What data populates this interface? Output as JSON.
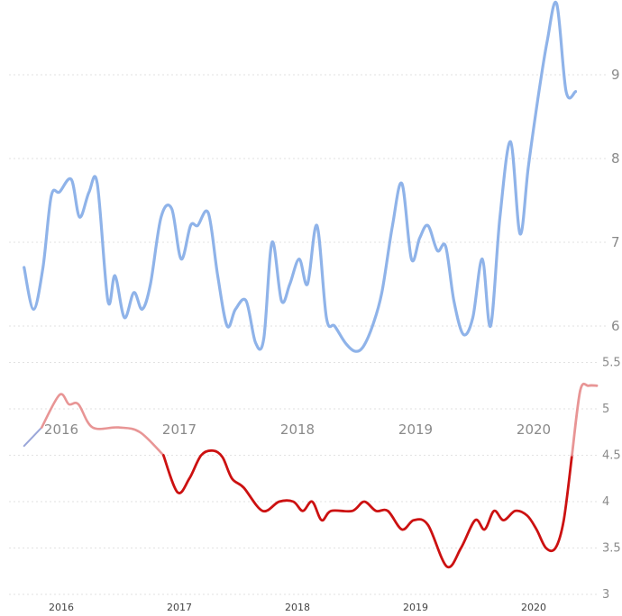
{
  "chart_data": [
    {
      "type": "line",
      "title": "",
      "xlabel": "",
      "ylabel": "",
      "ylim": [
        5.6,
        9.9
      ],
      "yticks": [
        "6",
        "7",
        "8",
        "9"
      ],
      "xticks": [
        "2016",
        "2017",
        "2018",
        "2019",
        "2020"
      ],
      "grid": true,
      "series": [
        {
          "color": "#8fb3e9",
          "points": [
            [
              2015.7,
              6.7
            ],
            [
              2015.78,
              6.2
            ],
            [
              2015.86,
              6.7
            ],
            [
              2015.93,
              7.55
            ],
            [
              2016.0,
              7.6
            ],
            [
              2016.1,
              7.75
            ],
            [
              2016.17,
              7.3
            ],
            [
              2016.25,
              7.6
            ],
            [
              2016.32,
              7.7
            ],
            [
              2016.41,
              6.3
            ],
            [
              2016.47,
              6.6
            ],
            [
              2016.55,
              6.1
            ],
            [
              2016.63,
              6.4
            ],
            [
              2016.7,
              6.2
            ],
            [
              2016.77,
              6.5
            ],
            [
              2016.86,
              7.3
            ],
            [
              2016.95,
              7.4
            ],
            [
              2017.03,
              6.8
            ],
            [
              2017.11,
              7.2
            ],
            [
              2017.17,
              7.2
            ],
            [
              2017.26,
              7.35
            ],
            [
              2017.34,
              6.6
            ],
            [
              2017.42,
              6.0
            ],
            [
              2017.49,
              6.2
            ],
            [
              2017.58,
              6.3
            ],
            [
              2017.66,
              5.8
            ],
            [
              2017.73,
              5.85
            ],
            [
              2017.8,
              7.0
            ],
            [
              2017.88,
              6.3
            ],
            [
              2017.95,
              6.5
            ],
            [
              2018.03,
              6.8
            ],
            [
              2018.1,
              6.5
            ],
            [
              2018.18,
              7.2
            ],
            [
              2018.26,
              6.1
            ],
            [
              2018.33,
              6.0
            ],
            [
              2018.42,
              5.8
            ],
            [
              2018.5,
              5.7
            ],
            [
              2018.57,
              5.75
            ],
            [
              2018.65,
              6.0
            ],
            [
              2018.73,
              6.4
            ],
            [
              2018.82,
              7.2
            ],
            [
              2018.9,
              7.7
            ],
            [
              2018.98,
              6.8
            ],
            [
              2019.05,
              7.05
            ],
            [
              2019.12,
              7.2
            ],
            [
              2019.2,
              6.9
            ],
            [
              2019.27,
              6.95
            ],
            [
              2019.34,
              6.3
            ],
            [
              2019.42,
              5.9
            ],
            [
              2019.5,
              6.1
            ],
            [
              2019.58,
              6.8
            ],
            [
              2019.65,
              6.0
            ],
            [
              2019.73,
              7.3
            ],
            [
              2019.82,
              8.2
            ],
            [
              2019.9,
              7.1
            ],
            [
              2019.97,
              7.9
            ],
            [
              2020.05,
              8.7
            ],
            [
              2020.13,
              9.4
            ],
            [
              2020.21,
              9.85
            ],
            [
              2020.29,
              8.8
            ],
            [
              2020.37,
              8.8
            ]
          ]
        }
      ]
    },
    {
      "type": "line",
      "title": "",
      "xlabel": "",
      "ylabel": "",
      "ylim": [
        3.0,
        5.5
      ],
      "yticks": [
        "3",
        "3.5",
        "4",
        "4.5",
        "5",
        "5.5"
      ],
      "xticks": [
        "2016",
        "2017",
        "2018",
        "2019",
        "2020"
      ],
      "grid": true,
      "series": [
        {
          "color": "#cc1111",
          "light_color": "#e89595",
          "start_color": "#9aa6d9",
          "points": [
            [
              2015.7,
              4.6
            ],
            [
              2015.85,
              4.8
            ],
            [
              2016.0,
              5.15
            ],
            [
              2016.08,
              5.05
            ],
            [
              2016.16,
              5.05
            ],
            [
              2016.28,
              4.8
            ],
            [
              2016.5,
              4.8
            ],
            [
              2016.68,
              4.75
            ],
            [
              2016.88,
              4.5
            ],
            [
              2017.0,
              4.1
            ],
            [
              2017.1,
              4.25
            ],
            [
              2017.2,
              4.5
            ],
            [
              2017.3,
              4.55
            ],
            [
              2017.38,
              4.48
            ],
            [
              2017.46,
              4.25
            ],
            [
              2017.56,
              4.15
            ],
            [
              2017.72,
              3.9
            ],
            [
              2017.86,
              4.0
            ],
            [
              2017.98,
              4.0
            ],
            [
              2018.06,
              3.9
            ],
            [
              2018.14,
              4.0
            ],
            [
              2018.22,
              3.8
            ],
            [
              2018.3,
              3.9
            ],
            [
              2018.48,
              3.9
            ],
            [
              2018.58,
              4.0
            ],
            [
              2018.68,
              3.9
            ],
            [
              2018.78,
              3.9
            ],
            [
              2018.9,
              3.7
            ],
            [
              2019.0,
              3.8
            ],
            [
              2019.12,
              3.75
            ],
            [
              2019.28,
              3.3
            ],
            [
              2019.4,
              3.5
            ],
            [
              2019.52,
              3.8
            ],
            [
              2019.6,
              3.7
            ],
            [
              2019.68,
              3.9
            ],
            [
              2019.76,
              3.8
            ],
            [
              2019.86,
              3.9
            ],
            [
              2019.96,
              3.85
            ],
            [
              2020.04,
              3.7
            ],
            [
              2020.12,
              3.5
            ],
            [
              2020.2,
              3.5
            ],
            [
              2020.27,
              3.8
            ],
            [
              2020.34,
              4.5
            ],
            [
              2020.41,
              5.2
            ],
            [
              2020.48,
              5.25
            ],
            [
              2020.55,
              5.25
            ]
          ]
        }
      ]
    }
  ]
}
